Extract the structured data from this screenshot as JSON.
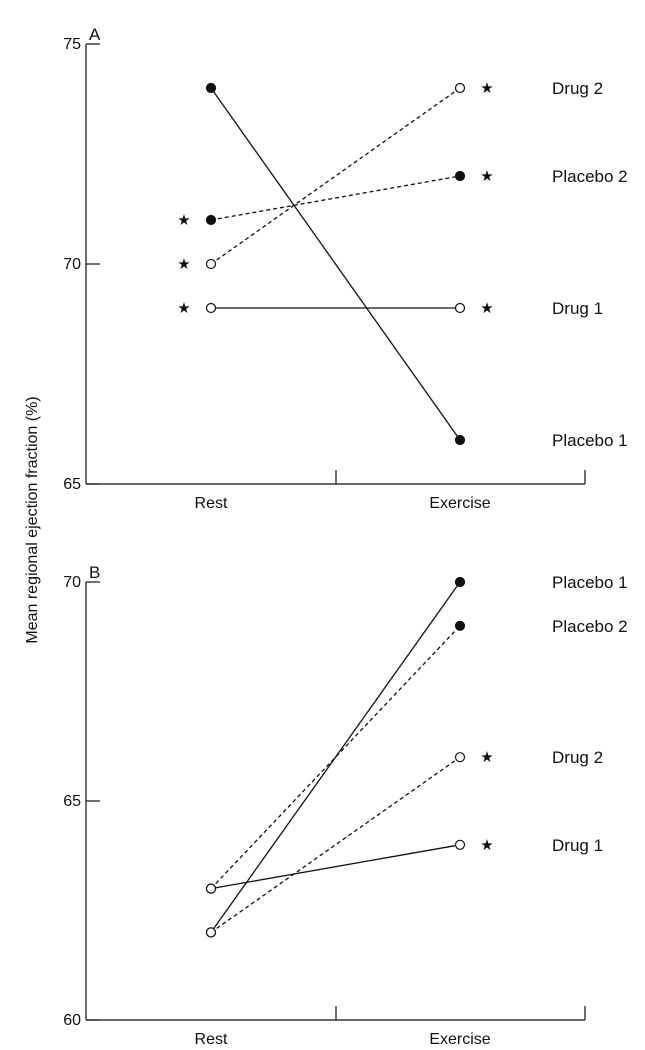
{
  "ylabel": "Mean regional ejection fraction (%)",
  "chart_data": [
    {
      "type": "line",
      "panel": "A",
      "categories": [
        "Rest",
        "Exercise"
      ],
      "ylim": [
        65,
        75
      ],
      "yticks": [
        65,
        70,
        75
      ],
      "grid": false,
      "series": [
        {
          "name": "Drug 2",
          "values": [
            70,
            74
          ],
          "marker": "open",
          "linestyle": "dashed",
          "significant": [
            true,
            true
          ]
        },
        {
          "name": "Placebo 2",
          "values": [
            71,
            72
          ],
          "marker": "filled",
          "linestyle": "dashed",
          "significant": [
            true,
            true
          ]
        },
        {
          "name": "Drug 1",
          "values": [
            69,
            69
          ],
          "marker": "open",
          "linestyle": "solid",
          "significant": [
            true,
            true
          ]
        },
        {
          "name": "Placebo 1",
          "values": [
            74,
            66
          ],
          "marker": "filled",
          "linestyle": "solid",
          "significant": [
            false,
            false
          ]
        }
      ]
    },
    {
      "type": "line",
      "panel": "B",
      "categories": [
        "Rest",
        "Exercise"
      ],
      "ylim": [
        60,
        70
      ],
      "yticks": [
        60,
        65,
        70
      ],
      "grid": false,
      "series": [
        {
          "name": "Placebo 1",
          "values": [
            62,
            70
          ],
          "marker": "filled",
          "linestyle": "solid",
          "significant": [
            false,
            false
          ]
        },
        {
          "name": "Placebo 2",
          "values": [
            63,
            69
          ],
          "marker": "filled",
          "linestyle": "dashed",
          "significant": [
            false,
            false
          ]
        },
        {
          "name": "Drug 2",
          "values": [
            62,
            66
          ],
          "marker": "open",
          "linestyle": "dashed",
          "significant": [
            false,
            true
          ]
        },
        {
          "name": "Drug 1",
          "values": [
            63,
            64
          ],
          "marker": "open",
          "linestyle": "solid",
          "significant": [
            false,
            true
          ]
        }
      ]
    }
  ]
}
